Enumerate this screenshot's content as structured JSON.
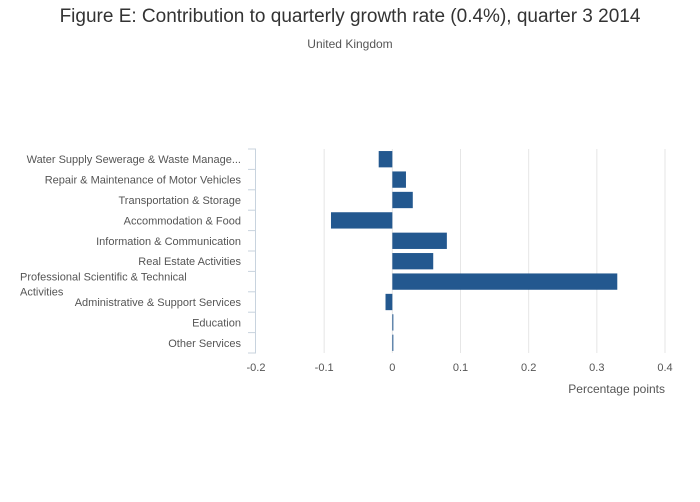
{
  "chart_data": {
    "type": "bar",
    "orientation": "horizontal",
    "title": "Figure E: Contribution to quarterly growth rate (0.4%), quarter 3 2014",
    "subtitle": "United Kingdom",
    "xlabel": "Percentage points",
    "ylabel": "",
    "xlim": [
      -0.2,
      0.4
    ],
    "xticks": [
      -0.2,
      -0.1,
      0,
      0.1,
      0.2,
      0.3,
      0.4
    ],
    "xtick_labels": [
      "-0.2",
      "-0.1",
      "0",
      "0.1",
      "0.2",
      "0.3",
      "0.4"
    ],
    "grid": "vertical",
    "legend": "none",
    "categories": [
      [
        "Water Supply Sewerage & Waste Manage..."
      ],
      [
        "Repair & Maintenance of Motor Vehicles"
      ],
      [
        "Transportation & Storage"
      ],
      [
        "Accommodation & Food"
      ],
      [
        "Information & Communication"
      ],
      [
        "Real Estate Activities"
      ],
      [
        "Professional Scientific & Technical",
        "Activities"
      ],
      [
        "Administrative & Support Services"
      ],
      [
        "Education"
      ],
      [
        "Other Services"
      ]
    ],
    "values": [
      -0.02,
      0.02,
      0.03,
      -0.09,
      0.08,
      0.06,
      0.33,
      -0.01,
      0.0015,
      0.0015
    ],
    "bar_color": "#23588f",
    "grid_color": "#e6e6e6",
    "axis_color": "#c8d3de"
  }
}
